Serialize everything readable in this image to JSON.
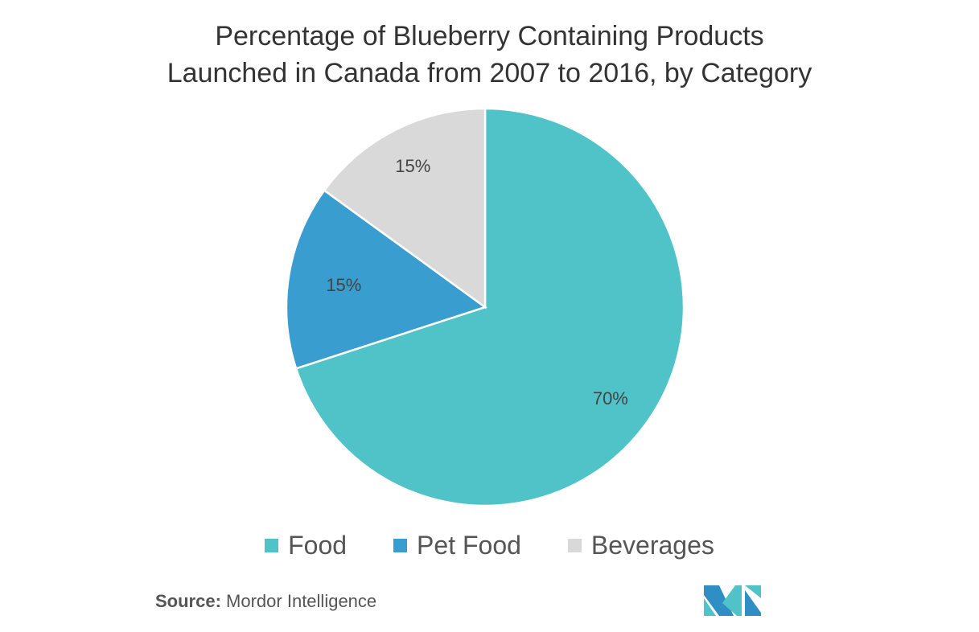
{
  "chart_data": {
    "type": "pie",
    "title_line1": "Percentage of Blueberry Containing Products",
    "title_line2": "Launched in Canada from 2007 to 2016, by Category",
    "slices": [
      {
        "label": "Food",
        "value": 70,
        "display": "70%",
        "color": "#50c3c9"
      },
      {
        "label": "Pet Food",
        "value": 15,
        "display": "15%",
        "color": "#3a9dcf"
      },
      {
        "label": "Beverages",
        "value": 15,
        "display": "15%",
        "color": "#d9d9d9"
      }
    ],
    "legend_position": "bottom"
  },
  "source": {
    "label": "Source:",
    "text": "Mordor Intelligence"
  }
}
